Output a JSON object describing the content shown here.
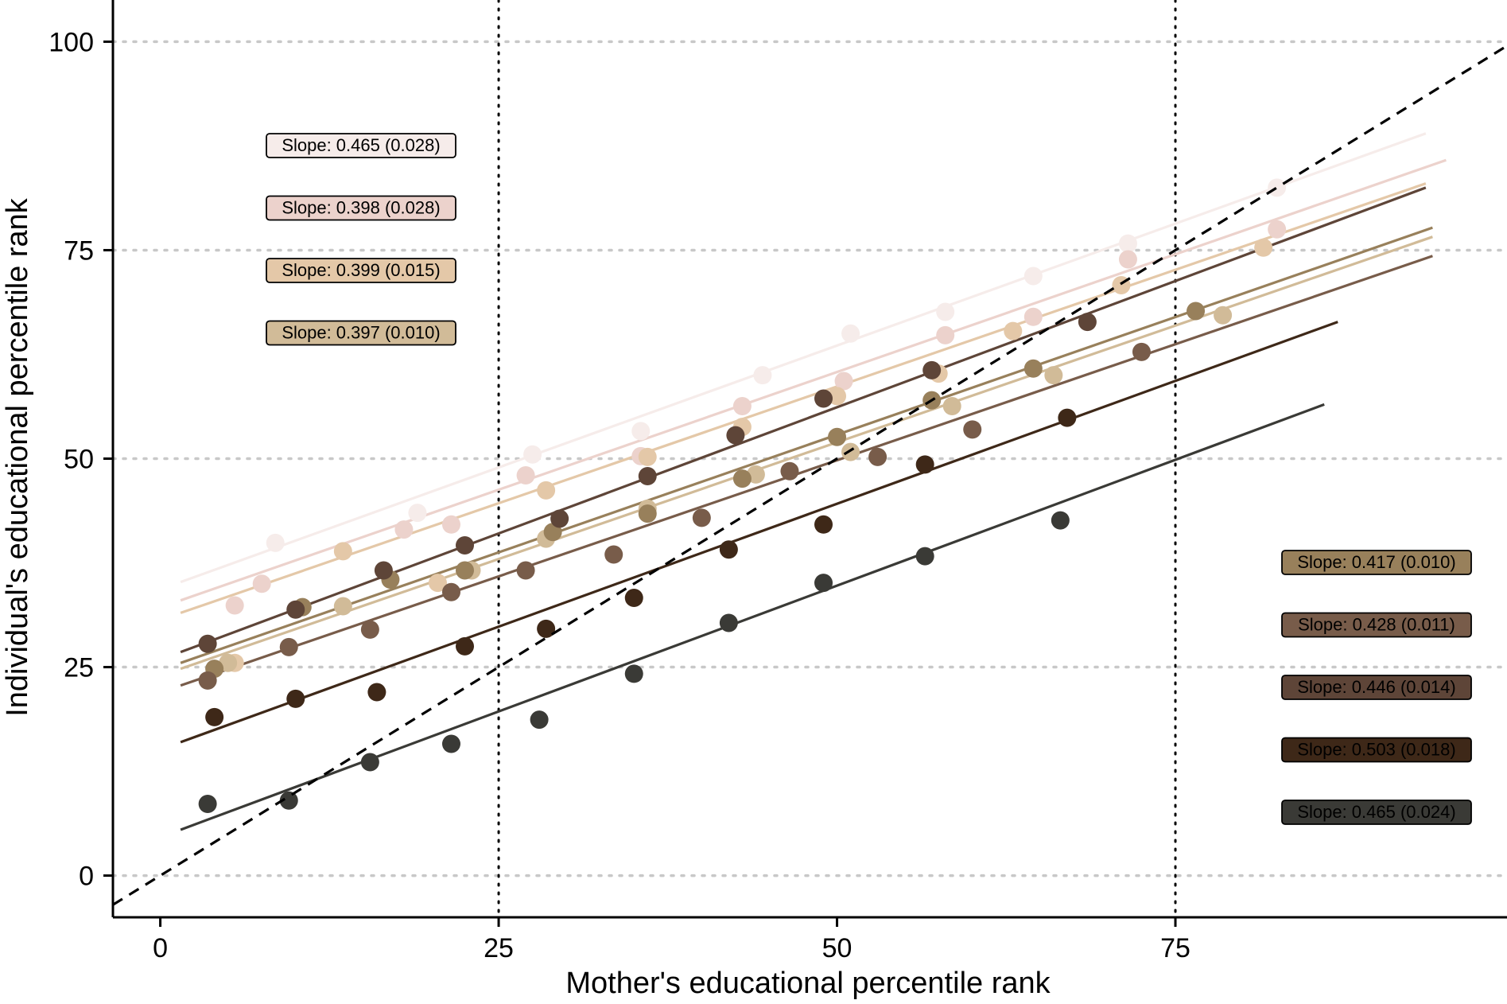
{
  "chart_data": {
    "type": "scatter",
    "xlabel": "Mother's educational percentile rank",
    "ylabel": "Individual's educational percentile rank",
    "xlim": [
      -3.5,
      99.5
    ],
    "ylim": [
      -5,
      105
    ],
    "x_ticks": [
      0,
      25,
      50,
      75
    ],
    "y_ticks": [
      0,
      25,
      50,
      75,
      100
    ],
    "x_tick_labels": [
      "0",
      "25",
      "50",
      "75"
    ],
    "y_tick_labels": [
      "0",
      "25",
      "50",
      "75",
      "100"
    ],
    "horizontal_gridlines": [
      0,
      25,
      50,
      75,
      100
    ],
    "vertical_reference_lines": [
      25,
      75
    ],
    "diagonal_line": {
      "from": [
        -3.5,
        -3.5
      ],
      "to": [
        99.5,
        99.5
      ],
      "style": "dashed"
    },
    "series": [
      {
        "color": "#f6ecea",
        "slope_label": "Slope: 0.465 (0.028)",
        "line": [
          [
            1.5,
            35.2
          ],
          [
            93.5,
            89.0
          ]
        ],
        "points": [
          [
            8.5,
            39.9
          ],
          [
            19,
            43.5
          ],
          [
            27.5,
            50.5
          ],
          [
            35.5,
            53.3
          ],
          [
            44.5,
            60.0
          ],
          [
            51,
            65.0
          ],
          [
            58,
            67.6
          ],
          [
            64.5,
            71.9
          ],
          [
            71.5,
            75.8
          ],
          [
            82.5,
            82.5
          ]
        ]
      },
      {
        "color": "#ecd2cc",
        "slope_label": "Slope: 0.398 (0.028)",
        "line": [
          [
            1.5,
            33.0
          ],
          [
            95,
            85.8
          ]
        ],
        "points": [
          [
            5.5,
            32.4
          ],
          [
            7.5,
            35.0
          ],
          [
            18,
            41.5
          ],
          [
            21.5,
            42.1
          ],
          [
            27,
            48.0
          ],
          [
            35.5,
            50.3
          ],
          [
            43,
            56.3
          ],
          [
            50.5,
            59.3
          ],
          [
            58,
            64.8
          ],
          [
            64.5,
            67.0
          ],
          [
            71.5,
            73.9
          ],
          [
            82.5,
            77.5
          ]
        ]
      },
      {
        "color": "#e4c8a8",
        "slope_label": "Slope: 0.399 (0.015)",
        "line": [
          [
            1.5,
            31.5
          ],
          [
            93.5,
            83.0
          ]
        ],
        "points": [
          [
            5.5,
            25.5
          ],
          [
            13.5,
            38.9
          ],
          [
            20.5,
            35.1
          ],
          [
            28.5,
            46.2
          ],
          [
            36,
            50.2
          ],
          [
            43,
            53.8
          ],
          [
            50,
            57.5
          ],
          [
            57.5,
            60.2
          ],
          [
            63,
            65.3
          ],
          [
            71,
            70.8
          ],
          [
            81.5,
            75.3
          ]
        ]
      },
      {
        "color": "#d1bb98",
        "slope_label": "Slope: 0.397 (0.010)",
        "line": [
          [
            1.5,
            24.8
          ],
          [
            94,
            76.6
          ]
        ],
        "points": [
          [
            5,
            25.5
          ],
          [
            13.5,
            32.3
          ],
          [
            23,
            36.6
          ],
          [
            28.5,
            40.4
          ],
          [
            36,
            44.0
          ],
          [
            44,
            48.1
          ],
          [
            51,
            50.8
          ],
          [
            58.5,
            56.3
          ],
          [
            66,
            60.0
          ],
          [
            78.5,
            67.2
          ]
        ]
      },
      {
        "color": "#98805b",
        "slope_label": "Slope: 0.417 (0.010)",
        "line": [
          [
            1.5,
            25.5
          ],
          [
            94,
            77.7
          ]
        ],
        "points": [
          [
            4,
            24.8
          ],
          [
            10.5,
            32.2
          ],
          [
            17,
            35.5
          ],
          [
            22.5,
            36.6
          ],
          [
            29,
            41.2
          ],
          [
            36,
            43.4
          ],
          [
            43,
            47.6
          ],
          [
            50,
            52.6
          ],
          [
            57,
            57.0
          ],
          [
            64.5,
            60.8
          ],
          [
            76.5,
            67.7
          ]
        ]
      },
      {
        "color": "#785c4a",
        "slope_label": "Slope: 0.428 (0.011)",
        "line": [
          [
            1.5,
            22.8
          ],
          [
            94,
            74.3
          ]
        ],
        "points": [
          [
            3.5,
            23.4
          ],
          [
            9.5,
            27.4
          ],
          [
            15.5,
            29.5
          ],
          [
            21.5,
            34.0
          ],
          [
            27,
            36.6
          ],
          [
            33.5,
            38.5
          ],
          [
            40,
            42.9
          ],
          [
            46.5,
            48.5
          ],
          [
            53,
            50.2
          ],
          [
            60,
            53.5
          ],
          [
            72.5,
            62.8
          ]
        ]
      },
      {
        "color": "#5e4538",
        "slope_label": "Slope: 0.446 (0.014)",
        "line": [
          [
            1.5,
            26.8
          ],
          [
            93.5,
            82.5
          ]
        ],
        "points": [
          [
            3.5,
            27.8
          ],
          [
            10,
            31.9
          ],
          [
            16.5,
            36.6
          ],
          [
            22.5,
            39.6
          ],
          [
            29.5,
            42.8
          ],
          [
            36,
            47.9
          ],
          [
            42.5,
            52.8
          ],
          [
            49,
            57.2
          ],
          [
            57,
            60.6
          ],
          [
            68.5,
            66.4
          ]
        ]
      },
      {
        "color": "#3e2818",
        "slope_label": "Slope: 0.503 (0.018)",
        "line": [
          [
            1.5,
            16.0
          ],
          [
            87,
            66.4
          ]
        ],
        "points": [
          [
            4,
            19.0
          ],
          [
            10,
            21.2
          ],
          [
            16,
            22.0
          ],
          [
            22.5,
            27.5
          ],
          [
            28.5,
            29.6
          ],
          [
            35,
            33.3
          ],
          [
            42,
            39.1
          ],
          [
            49,
            42.1
          ],
          [
            56.5,
            49.3
          ],
          [
            67,
            54.9
          ]
        ]
      },
      {
        "color": "#3a3a36",
        "slope_label": "Slope: 0.465 (0.024)",
        "line": [
          [
            1.5,
            5.5
          ],
          [
            86,
            56.5
          ]
        ],
        "points": [
          [
            3.5,
            8.6
          ],
          [
            9.5,
            9.0
          ],
          [
            15.5,
            13.6
          ],
          [
            21.5,
            15.8
          ],
          [
            28,
            18.7
          ],
          [
            35,
            24.2
          ],
          [
            42,
            30.3
          ],
          [
            49,
            35.1
          ],
          [
            56.5,
            38.3
          ],
          [
            66.5,
            42.6
          ]
        ]
      }
    ]
  }
}
